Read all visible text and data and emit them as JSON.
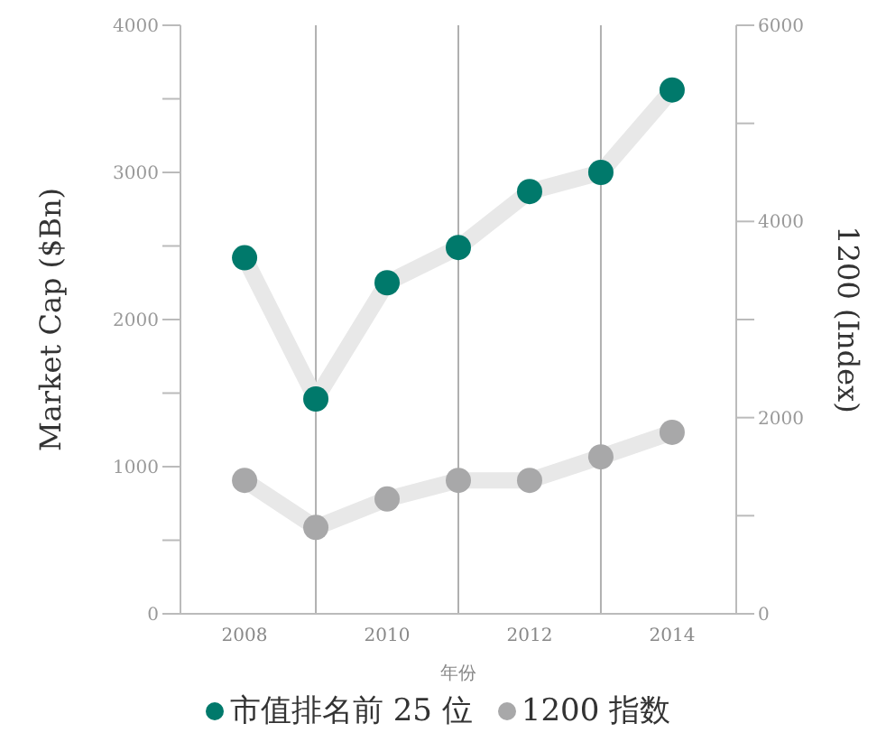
{
  "chart_data": {
    "type": "line",
    "xlabel": "年份",
    "ylabel": "Market Cap ($Bn)",
    "y2label": "1200 (Index)",
    "x": [
      2008,
      2009,
      2010,
      2011,
      2012,
      2013,
      2014
    ],
    "series": [
      {
        "name": "市值排名前 25 位",
        "color": "#00796b",
        "values": [
          2420,
          1460,
          2250,
          2490,
          2870,
          3000,
          3560
        ]
      },
      {
        "name": "1200 指数",
        "color": "#a8a8a9",
        "axis": "y2",
        "values": [
          1360,
          880,
          1170,
          1360,
          1360,
          1600,
          1850
        ]
      }
    ],
    "xlim": [
      2007.1,
      2014.9
    ],
    "xticks": [
      2008,
      2010,
      2012,
      2014
    ],
    "ylim": [
      0,
      4000
    ],
    "yticks": [
      0,
      {
        "value": 500,
        "label": null
      },
      1000,
      {
        "value": 1500,
        "label": null
      },
      2000,
      {
        "value": 2500,
        "label": null
      },
      3000,
      {
        "value": 3500,
        "label": null
      },
      4000
    ],
    "y2lim": [
      0,
      6000
    ],
    "y2ticks": [
      0,
      {
        "value": 1000,
        "label": null
      },
      2000,
      {
        "value": 3000,
        "label": null
      },
      4000,
      {
        "value": 5000,
        "label": null
      },
      6000
    ],
    "ref_lines": [
      {
        "axis": "x",
        "value": 2009,
        "color": "#b0b0b0"
      },
      {
        "axis": "x",
        "value": 2011,
        "color": "#b0b0b0"
      },
      {
        "axis": "x",
        "value": 2013,
        "color": "#b0b0b0"
      }
    ],
    "marker": "circle",
    "legend": "bottom",
    "grid": false
  }
}
